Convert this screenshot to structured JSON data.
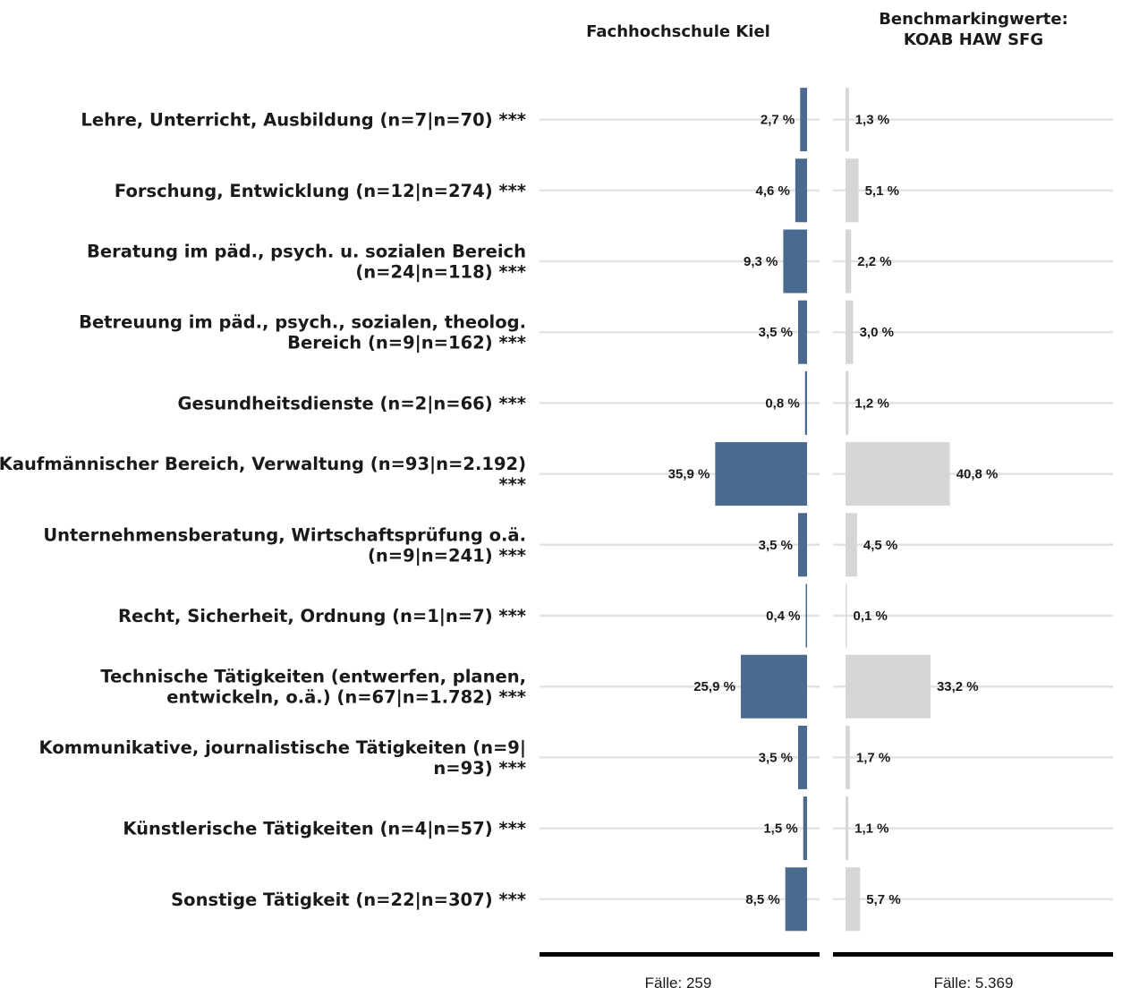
{
  "chart_data": {
    "type": "bar",
    "orientation": "horizontal",
    "categories": [
      "Lehre, Unterricht, Ausbildung (n=7|n=70) ***",
      "Forschung, Entwicklung (n=12|n=274) ***",
      "Beratung im päd., psych. u. sozialen Bereich (n=24|n=118) ***",
      "Betreuung im päd., psych., sozialen, theolog. Bereich (n=9|n=162) ***",
      "Gesundheitsdienste (n=2|n=66) ***",
      "Kaufmännischer Bereich, Verwaltung (n=93|n=2.192) ***",
      "Unternehmensberatung, Wirtschaftsprüfung o.ä. (n=9|n=241) ***",
      "Recht, Sicherheit, Ordnung (n=1|n=7) ***",
      "Technische Tätigkeiten (entwerfen, planen, entwickeln, o.ä.) (n=67|n=1.782) ***",
      "Kommunikative, journalistische Tätigkeiten (n=9| n=93) ***",
      "Künstlerische Tätigkeiten (n=4|n=57) ***",
      "Sonstige Tätigkeit (n=22|n=307) ***"
    ],
    "category_lines": [
      [
        "Lehre, Unterricht, Ausbildung (n=7|n=70) ***"
      ],
      [
        "Forschung, Entwicklung (n=12|n=274) ***"
      ],
      [
        "Beratung im päd., psych. u. sozialen Bereich",
        "(n=24|n=118) ***"
      ],
      [
        "Betreuung im päd., psych., sozialen, theolog.",
        "Bereich (n=9|n=162) ***"
      ],
      [
        "Gesundheitsdienste (n=2|n=66) ***"
      ],
      [
        "Kaufmännischer Bereich, Verwaltung (n=93|n=2.192)",
        "***"
      ],
      [
        "Unternehmensberatung, Wirtschaftsprüfung o.ä.",
        "(n=9|n=241) ***"
      ],
      [
        "Recht, Sicherheit, Ordnung (n=1|n=7) ***"
      ],
      [
        "Technische Tätigkeiten (entwerfen, planen,",
        "entwickeln, o.ä.) (n=67|n=1.782) ***"
      ],
      [
        "Kommunikative, journalistische Tätigkeiten (n=9|",
        "n=93) ***"
      ],
      [
        "Künstlerische Tätigkeiten (n=4|n=57) ***"
      ],
      [
        "Sonstige Tätigkeit (n=22|n=307) ***"
      ]
    ],
    "value_unit": "%",
    "series": [
      {
        "name": "Fachhochschule Kiel",
        "title_lines": [
          "Fachhochschule Kiel"
        ],
        "values": [
          2.7,
          4.6,
          9.3,
          3.5,
          0.8,
          35.9,
          3.5,
          0.4,
          25.9,
          3.5,
          1.5,
          8.5
        ],
        "labels": [
          "2,7 %",
          "4,6 %",
          "9,3 %",
          "3,5 %",
          "0,8 %",
          "35,9 %",
          "3,5 %",
          "0,4 %",
          "25,9 %",
          "3,5 %",
          "1,5 %",
          "8,5 %"
        ],
        "color": "#4a6a90",
        "direction": "left",
        "footer": "Fälle: 259"
      },
      {
        "name": "Benchmarkingwerte: KOAB HAW SFG",
        "title_lines": [
          "Benchmarkingwerte:",
          "KOAB HAW SFG"
        ],
        "values": [
          1.3,
          5.1,
          2.2,
          3.0,
          1.2,
          40.8,
          4.5,
          0.1,
          33.2,
          1.7,
          1.1,
          5.7
        ],
        "labels": [
          "1,3 %",
          "5,1 %",
          "2,2 %",
          "3,0 %",
          "1,2 %",
          "40,8 %",
          "4,5 %",
          "0,1 %",
          "33,2 %",
          "1,7 %",
          "1,1 %",
          "5,7 %"
        ],
        "color": "#d6d6d6",
        "direction": "right",
        "footer": "Fälle: 5.369"
      }
    ],
    "grid": true,
    "legend": "none",
    "colors": {
      "gridline": "#e3e3e3",
      "baseline": "#000000",
      "text": "#1a1a1a"
    }
  }
}
